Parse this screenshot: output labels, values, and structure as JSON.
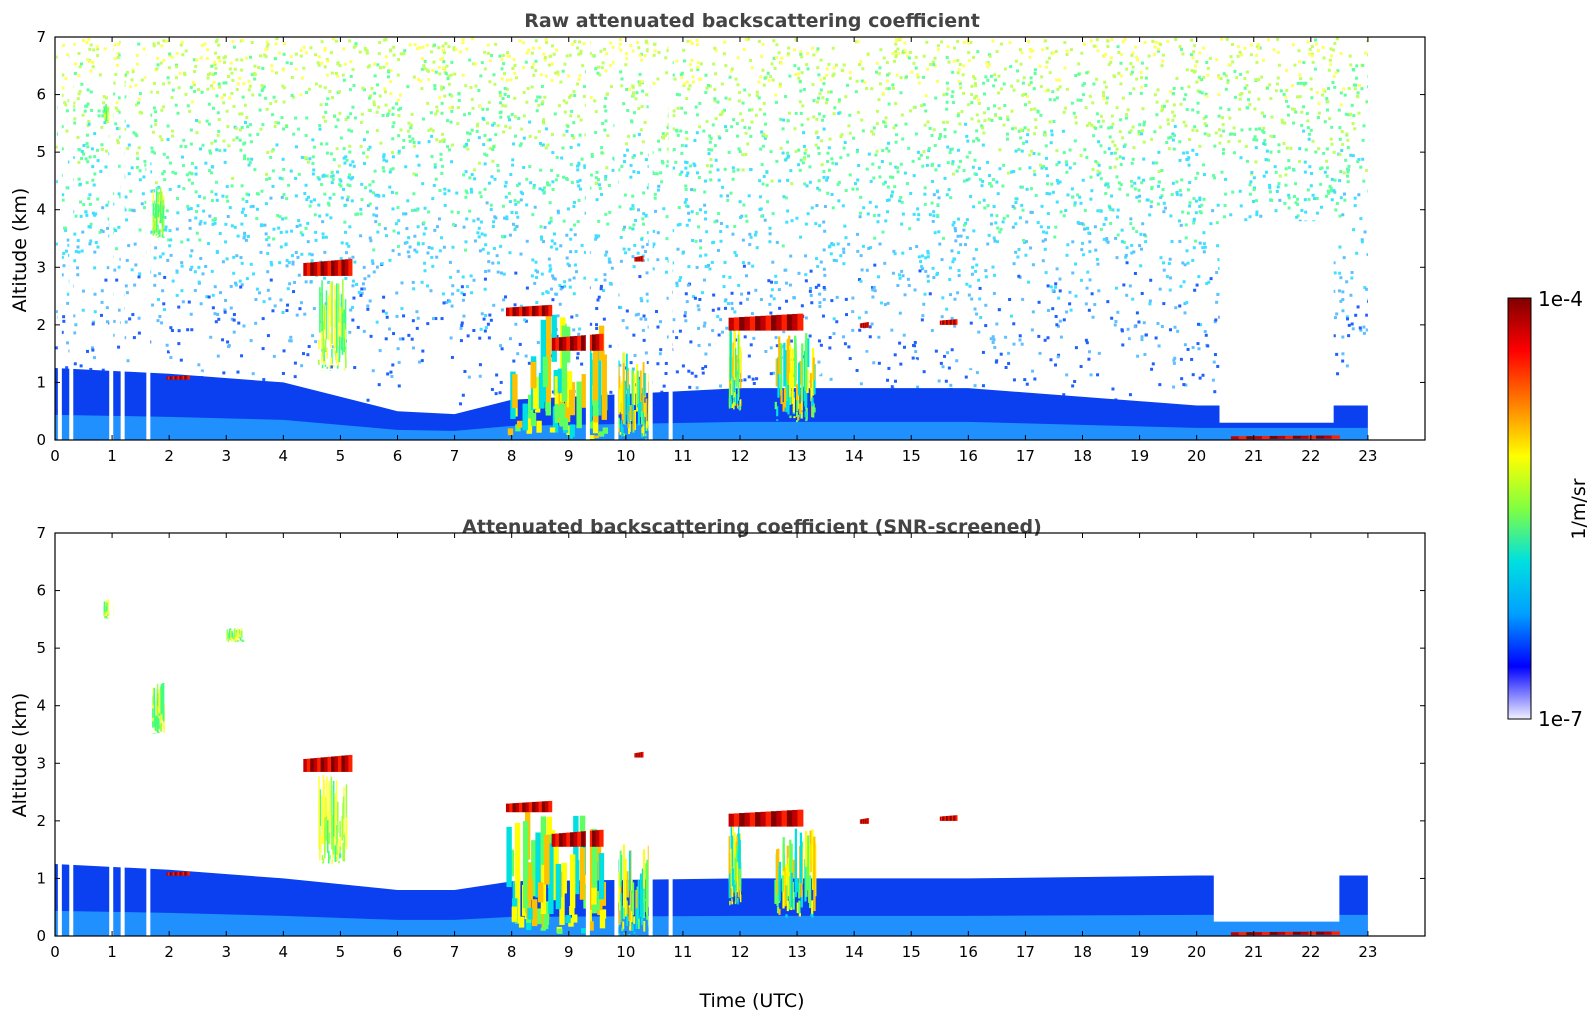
{
  "chart_data": [
    {
      "type": "heatmap",
      "title": "Raw attenuated backscattering coefficient",
      "ylabel": "Altitude (km)",
      "xlabel": "",
      "xlim": [
        0,
        24
      ],
      "ylim": [
        0,
        7
      ],
      "xticks": [
        "0",
        "1",
        "2",
        "3",
        "4",
        "5",
        "6",
        "7",
        "8",
        "9",
        "10",
        "11",
        "12",
        "13",
        "14",
        "15",
        "16",
        "17",
        "18",
        "19",
        "20",
        "21",
        "22",
        "23"
      ],
      "yticks": [
        "0",
        "1",
        "2",
        "3",
        "4",
        "5",
        "6",
        "7"
      ],
      "data_end_time": 23,
      "noise_top_km": 7,
      "gap_times": [
        0.05,
        0.25,
        0.95,
        1.15,
        1.6,
        9.3,
        9.8,
        10.4,
        10.75
      ],
      "boundary_layer": [
        {
          "t": 0,
          "top": 1.25
        },
        {
          "t": 2,
          "top": 1.15
        },
        {
          "t": 4,
          "top": 1.0
        },
        {
          "t": 6,
          "top": 0.5
        },
        {
          "t": 7,
          "top": 0.45
        },
        {
          "t": 8,
          "top": 0.7
        },
        {
          "t": 12,
          "top": 0.9
        },
        {
          "t": 16,
          "top": 0.9
        },
        {
          "t": 20,
          "top": 0.6
        },
        {
          "t": 23,
          "top": 0.6
        }
      ],
      "clear_region": {
        "t0": 20.4,
        "t1": 22.4,
        "bottom": 0.3,
        "top": 3.8
      },
      "clouds": [
        {
          "t0": 4.35,
          "t1": 5.2,
          "base": 2.85,
          "top": 3.15,
          "level": "high"
        },
        {
          "t0": 1.95,
          "t1": 2.35,
          "base": 1.05,
          "top": 1.12,
          "level": "high"
        },
        {
          "t0": 7.9,
          "t1": 8.7,
          "base": 2.15,
          "top": 2.35,
          "level": "high"
        },
        {
          "t0": 8.7,
          "t1": 9.6,
          "base": 1.55,
          "top": 1.85,
          "level": "high"
        },
        {
          "t0": 11.8,
          "t1": 13.1,
          "base": 1.9,
          "top": 2.2,
          "level": "high"
        },
        {
          "t0": 14.1,
          "t1": 14.25,
          "base": 1.95,
          "top": 2.05,
          "level": "high"
        },
        {
          "t0": 15.5,
          "t1": 15.8,
          "base": 2.0,
          "top": 2.1,
          "level": "high"
        },
        {
          "t0": 10.15,
          "t1": 10.3,
          "base": 3.1,
          "top": 3.2,
          "level": "high"
        },
        {
          "t0": 20.6,
          "t1": 22.5,
          "base": 0.02,
          "top": 0.08,
          "level": "high"
        }
      ],
      "virga": [
        {
          "t0": 7.9,
          "t1": 9.6,
          "base": 0.0,
          "top": 2.2,
          "level": "mid"
        },
        {
          "t0": 11.8,
          "t1": 12.0,
          "base": 0.5,
          "top": 2.0,
          "level": "mid"
        },
        {
          "t0": 12.6,
          "t1": 13.3,
          "base": 0.3,
          "top": 1.9,
          "level": "mid"
        },
        {
          "t0": 4.6,
          "t1": 5.1,
          "base": 1.2,
          "top": 2.8,
          "level": "low"
        },
        {
          "t0": 9.8,
          "t1": 10.4,
          "base": 0.0,
          "top": 1.6,
          "level": "mid"
        },
        {
          "t0": 1.7,
          "t1": 1.9,
          "base": 3.5,
          "top": 4.4,
          "level": "low"
        },
        {
          "t0": 0.85,
          "t1": 1.0,
          "base": 5.5,
          "top": 5.85,
          "level": "low"
        }
      ]
    },
    {
      "type": "heatmap",
      "title": "Attenuated backscattering coefficient (SNR-screened)",
      "ylabel": "Altitude (km)",
      "xlabel": "Time (UTC)",
      "xlim": [
        0,
        24
      ],
      "ylim": [
        0,
        7
      ],
      "xticks": [
        "0",
        "1",
        "2",
        "3",
        "4",
        "5",
        "6",
        "7",
        "8",
        "9",
        "10",
        "11",
        "12",
        "13",
        "14",
        "15",
        "16",
        "17",
        "18",
        "19",
        "20",
        "21",
        "22",
        "23"
      ],
      "yticks": [
        "0",
        "1",
        "2",
        "3",
        "4",
        "5",
        "6",
        "7"
      ],
      "data_end_time": 23,
      "noise_top_km": 0,
      "gap_times": [
        0.05,
        0.25,
        0.95,
        1.15,
        1.6,
        9.3,
        9.8,
        10.4,
        10.75
      ],
      "boundary_layer": [
        {
          "t": 0,
          "top": 1.25
        },
        {
          "t": 2,
          "top": 1.15
        },
        {
          "t": 4,
          "top": 1.0
        },
        {
          "t": 6,
          "top": 0.8
        },
        {
          "t": 7,
          "top": 0.8
        },
        {
          "t": 8,
          "top": 0.95
        },
        {
          "t": 12,
          "top": 1.0
        },
        {
          "t": 16,
          "top": 1.0
        },
        {
          "t": 20,
          "top": 1.05
        },
        {
          "t": 23,
          "top": 1.05
        }
      ],
      "clear_region": {
        "t0": 20.3,
        "t1": 22.5,
        "bottom": 0.25,
        "top": 1.1
      },
      "clouds": [
        {
          "t0": 4.35,
          "t1": 5.2,
          "base": 2.85,
          "top": 3.15,
          "level": "high"
        },
        {
          "t0": 1.95,
          "t1": 2.35,
          "base": 1.05,
          "top": 1.12,
          "level": "high"
        },
        {
          "t0": 7.9,
          "t1": 8.7,
          "base": 2.15,
          "top": 2.35,
          "level": "high"
        },
        {
          "t0": 8.7,
          "t1": 9.6,
          "base": 1.55,
          "top": 1.85,
          "level": "high"
        },
        {
          "t0": 11.8,
          "t1": 13.1,
          "base": 1.9,
          "top": 2.2,
          "level": "high"
        },
        {
          "t0": 14.1,
          "t1": 14.25,
          "base": 1.95,
          "top": 2.05,
          "level": "high"
        },
        {
          "t0": 15.5,
          "t1": 15.8,
          "base": 2.0,
          "top": 2.1,
          "level": "high"
        },
        {
          "t0": 10.15,
          "t1": 10.3,
          "base": 3.1,
          "top": 3.2,
          "level": "high"
        },
        {
          "t0": 20.6,
          "t1": 22.5,
          "base": 0.02,
          "top": 0.08,
          "level": "high"
        }
      ],
      "virga": [
        {
          "t0": 7.9,
          "t1": 9.6,
          "base": 0.0,
          "top": 2.2,
          "level": "mid"
        },
        {
          "t0": 11.8,
          "t1": 12.0,
          "base": 0.5,
          "top": 2.0,
          "level": "mid"
        },
        {
          "t0": 12.6,
          "t1": 13.3,
          "base": 0.3,
          "top": 1.9,
          "level": "mid"
        },
        {
          "t0": 4.6,
          "t1": 5.1,
          "base": 1.2,
          "top": 2.8,
          "level": "low"
        },
        {
          "t0": 9.8,
          "t1": 10.4,
          "base": 0.0,
          "top": 1.6,
          "level": "mid"
        },
        {
          "t0": 1.7,
          "t1": 1.9,
          "base": 3.5,
          "top": 4.4,
          "level": "low"
        },
        {
          "t0": 0.85,
          "t1": 1.0,
          "base": 5.5,
          "top": 5.85,
          "level": "low"
        },
        {
          "t0": 3.0,
          "t1": 3.3,
          "base": 5.1,
          "top": 5.35,
          "level": "low"
        }
      ]
    }
  ],
  "colorbar": {
    "label": "1/m/sr",
    "max_label": "1e-4",
    "min_label": "1e-7",
    "scale": "log",
    "range": [
      1e-07,
      0.0001
    ],
    "colormap": [
      "#f0f0ff",
      "#0000ff",
      "#00a0ff",
      "#00e0e0",
      "#80ff40",
      "#ffff00",
      "#ff8000",
      "#ff0000",
      "#800000"
    ]
  }
}
